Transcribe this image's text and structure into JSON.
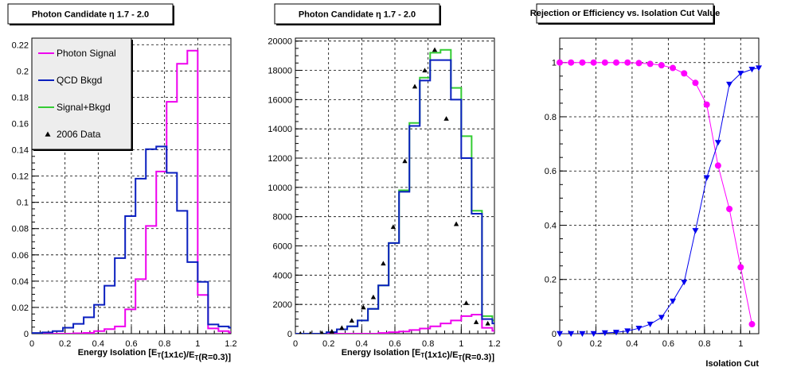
{
  "chart_data": [
    {
      "type": "line",
      "title": "Photon Candidate η 1.7 - 2.0",
      "xlabel": "Energy Isolation [E_T(1x1c)/E_T(R=0.3)]",
      "ylabel": "",
      "xlim": [
        0,
        1.2
      ],
      "ylim": [
        0,
        0.225
      ],
      "xticks": [
        "0",
        "0.2",
        "0.4",
        "0.6",
        "0.8",
        "1",
        "1.2"
      ],
      "yticks": [
        "0",
        "0.02",
        "0.04",
        "0.06",
        "0.08",
        "0.1",
        "0.12",
        "0.14",
        "0.16",
        "0.18",
        "0.2",
        "0.22"
      ],
      "grid": true,
      "legend": "top-left",
      "legend_items": [
        {
          "label": "Photon Signal",
          "color": "#ee00ee",
          "kind": "line"
        },
        {
          "label": "QCD Bkgd",
          "color": "#0a1fbf",
          "kind": "line"
        },
        {
          "label": "Signal+Bkgd",
          "color": "#33cc33",
          "kind": "line"
        },
        {
          "label": "2006 Data",
          "color": "#000000",
          "kind": "triangle"
        }
      ],
      "bin_edges": [
        0,
        0.0625,
        0.125,
        0.1875,
        0.25,
        0.3125,
        0.375,
        0.4375,
        0.5,
        0.5625,
        0.625,
        0.6875,
        0.75,
        0.8125,
        0.875,
        0.9375,
        1.0,
        1.0625,
        1.125,
        1.1875,
        1.25
      ],
      "series": [
        {
          "name": "Photon Signal",
          "color": "#ee00ee",
          "step": true,
          "values": [
            0,
            0,
            0,
            0,
            0.0003,
            0.0006,
            0.002,
            0.0035,
            0.0055,
            0.0185,
            0.0415,
            0.082,
            0.1235,
            0.1765,
            0.2055,
            0.2155,
            0.0295,
            0.004,
            0.002,
            0.001
          ]
        },
        {
          "name": "QCD Bkgd",
          "color": "#0a1fbf",
          "step": true,
          "values": [
            0.0005,
            0.001,
            0.002,
            0.0045,
            0.0075,
            0.0125,
            0.022,
            0.0365,
            0.0575,
            0.0895,
            0.118,
            0.1405,
            0.1425,
            0.1225,
            0.0935,
            0.0545,
            0.0395,
            0.007,
            0.0055,
            0.0045
          ]
        }
      ]
    },
    {
      "type": "line",
      "title": "Photon Candidate η 1.7 - 2.0",
      "xlabel": "Energy Isolation [E_T(1x1c)/E_T(R=0.3)]",
      "ylabel": "",
      "xlim": [
        0,
        1.2
      ],
      "ylim": [
        0,
        20200
      ],
      "xticks": [
        "0",
        "0.2",
        "0.4",
        "0.6",
        "0.8",
        "1",
        "1.2"
      ],
      "yticks": [
        "0",
        "2000",
        "4000",
        "6000",
        "8000",
        "10000",
        "12000",
        "14000",
        "16000",
        "18000",
        "20000"
      ],
      "grid": true,
      "bin_edges": [
        0,
        0.0625,
        0.125,
        0.1875,
        0.25,
        0.3125,
        0.375,
        0.4375,
        0.5,
        0.5625,
        0.625,
        0.6875,
        0.75,
        0.8125,
        0.875,
        0.9375,
        1.0,
        1.0625,
        1.125,
        1.1875,
        1.25
      ],
      "series": [
        {
          "name": "Signal+Bkgd",
          "color": "#33cc33",
          "step": true,
          "values": [
            0,
            0,
            0,
            100,
            300,
            500,
            900,
            1700,
            3300,
            6200,
            9800,
            14400,
            17500,
            19200,
            19400,
            16800,
            13500,
            8400,
            1200,
            900,
            700
          ]
        },
        {
          "name": "Photon Signal",
          "color": "#ee00ee",
          "step": true,
          "values": [
            0,
            0,
            0,
            0,
            0,
            0,
            0,
            0,
            50,
            100,
            150,
            250,
            350,
            500,
            700,
            900,
            1200,
            1300,
            400,
            200,
            100
          ]
        },
        {
          "name": "QCD Bkgd",
          "color": "#0a1fbf",
          "step": true,
          "values": [
            0,
            0,
            0,
            100,
            300,
            500,
            900,
            1700,
            3300,
            6200,
            9700,
            14200,
            17300,
            18700,
            18700,
            16000,
            12000,
            8200,
            1000,
            700,
            600
          ]
        },
        {
          "name": "2006 Data",
          "color": "#000000",
          "kind": "points",
          "x": [
            0.03,
            0.09,
            0.16,
            0.22,
            0.28,
            0.34,
            0.41,
            0.47,
            0.53,
            0.59,
            0.66,
            0.72,
            0.78,
            0.84,
            0.91,
            0.97,
            1.03,
            1.09,
            1.16,
            1.22
          ],
          "values": [
            0,
            0,
            50,
            150,
            400,
            900,
            1800,
            2500,
            4800,
            7300,
            11800,
            16900,
            18000,
            19400,
            14700,
            7500,
            2100,
            800,
            700,
            550
          ]
        }
      ]
    },
    {
      "type": "line",
      "title": "Rejection or Efficiency vs. Isolation Cut Value",
      "xlabel": "Isolation Cut",
      "ylabel": "",
      "xlim": [
        0,
        1.1
      ],
      "ylim": [
        0,
        1.09
      ],
      "xticks": [
        "0",
        "0.2",
        "0.4",
        "0.6",
        "0.8",
        "1"
      ],
      "yticks": [
        "0",
        "0.2",
        "0.4",
        "0.6",
        "0.8",
        "1"
      ],
      "grid": true,
      "series": [
        {
          "name": "",
          "color": "#ff00ff",
          "marker": "circle",
          "x": [
            0.0,
            0.0625,
            0.125,
            0.1875,
            0.25,
            0.3125,
            0.375,
            0.4375,
            0.5,
            0.5625,
            0.625,
            0.6875,
            0.75,
            0.8125,
            0.875,
            0.9375,
            1.0,
            1.0625
          ],
          "values": [
            1.0,
            1.0,
            1.0,
            1.0,
            1.0,
            1.0,
            1.0,
            0.998,
            0.995,
            0.99,
            0.98,
            0.96,
            0.925,
            0.845,
            0.62,
            0.46,
            0.245,
            0.035
          ]
        },
        {
          "name": "",
          "color": "#0000ee",
          "marker": "triangle-down",
          "x": [
            0.0,
            0.0625,
            0.125,
            0.1875,
            0.25,
            0.3125,
            0.375,
            0.4375,
            0.5,
            0.5625,
            0.625,
            0.6875,
            0.75,
            0.8125,
            0.875,
            0.9375,
            1.0,
            1.0625,
            1.1
          ],
          "values": [
            0.0,
            0.0,
            0.0,
            0.0,
            0.003,
            0.005,
            0.01,
            0.02,
            0.035,
            0.06,
            0.12,
            0.19,
            0.38,
            0.575,
            0.705,
            0.92,
            0.96,
            0.975,
            0.98
          ]
        }
      ]
    }
  ]
}
